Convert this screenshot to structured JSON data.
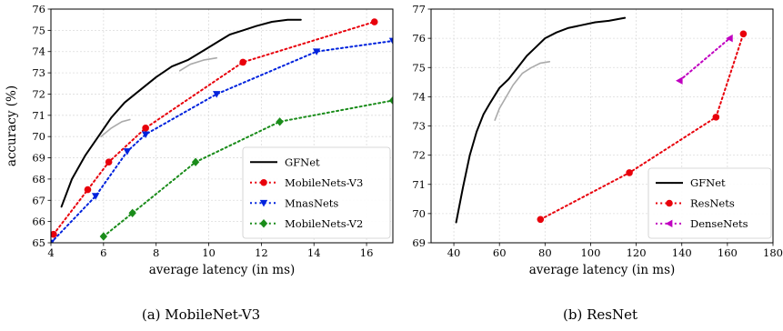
{
  "chart_data": [
    {
      "type": "line",
      "caption": "(a) MobileNet-V3",
      "xlabel": "average latency (in ms)",
      "ylabel": "accuracy (%)",
      "xlim": [
        4,
        17
      ],
      "ylim": [
        65,
        76
      ],
      "xticks": [
        4,
        6,
        8,
        10,
        12,
        14,
        16
      ],
      "yticks": [
        65,
        66,
        67,
        68,
        69,
        70,
        71,
        72,
        73,
        74,
        75,
        76
      ],
      "grid": true,
      "legend_position": "lower-right",
      "series": [
        {
          "name": "GFNet",
          "color": "#000000",
          "style": "solid",
          "marker": "none",
          "x": [
            4.4,
            4.8,
            5.3,
            5.8,
            6.3,
            6.8,
            7.4,
            8.0,
            8.6,
            9.2,
            9.6,
            10.0,
            10.4,
            10.8,
            11.3,
            11.8,
            12.4,
            13.0,
            13.5
          ],
          "y": [
            66.7,
            68.0,
            69.1,
            70.0,
            70.9,
            71.6,
            72.2,
            72.8,
            73.3,
            73.6,
            73.9,
            74.2,
            74.5,
            74.8,
            75.0,
            75.2,
            75.4,
            75.5,
            75.5
          ]
        },
        {
          "name": "",
          "color": "#aaaaaa",
          "style": "solid",
          "marker": "none",
          "x": [
            5.9,
            6.3,
            6.7,
            7.0
          ],
          "y": [
            70.0,
            70.4,
            70.7,
            70.8
          ]
        },
        {
          "name": "",
          "color": "#aaaaaa",
          "style": "solid",
          "marker": "none",
          "x": [
            8.9,
            9.3,
            9.8,
            10.3
          ],
          "y": [
            73.1,
            73.4,
            73.6,
            73.7
          ]
        },
        {
          "name": "MobileNets-V3",
          "color": "#e8000b",
          "style": "dotted",
          "marker": "circle",
          "x": [
            4.1,
            5.4,
            6.2,
            7.6,
            11.3,
            16.3
          ],
          "y": [
            65.4,
            67.5,
            68.8,
            70.4,
            73.5,
            75.4
          ]
        },
        {
          "name": "MnasNets",
          "color": "#0022dd",
          "style": "dotted",
          "marker": "triangle-down",
          "x": [
            4.0,
            5.7,
            6.9,
            7.6,
            10.3,
            14.1,
            17.0
          ],
          "y": [
            65.0,
            67.2,
            69.3,
            70.1,
            72.0,
            74.0,
            74.5
          ]
        },
        {
          "name": "MobileNets-V2",
          "color": "#1a8c1a",
          "style": "dotted",
          "marker": "diamond",
          "x": [
            6.0,
            7.1,
            9.5,
            12.7,
            17.0
          ],
          "y": [
            65.3,
            66.4,
            68.8,
            70.7,
            71.7
          ]
        }
      ]
    },
    {
      "type": "line",
      "caption": "(b) ResNet",
      "xlabel": "average latency (in ms)",
      "ylabel": "",
      "xlim": [
        30,
        180
      ],
      "ylim": [
        69,
        77
      ],
      "xticks": [
        40,
        60,
        80,
        100,
        120,
        140,
        160,
        180
      ],
      "yticks": [
        69,
        70,
        71,
        72,
        73,
        74,
        75,
        76,
        77
      ],
      "grid": true,
      "legend_position": "lower-right",
      "series": [
        {
          "name": "GFNet",
          "color": "#000000",
          "style": "solid",
          "marker": "none",
          "x": [
            41,
            44,
            47,
            50,
            53,
            56,
            60,
            64,
            68,
            72,
            76,
            80,
            85,
            90,
            96,
            102,
            108,
            115
          ],
          "y": [
            69.7,
            70.9,
            72.0,
            72.8,
            73.4,
            73.8,
            74.3,
            74.6,
            75.0,
            75.4,
            75.7,
            76.0,
            76.2,
            76.35,
            76.45,
            76.55,
            76.6,
            76.7
          ]
        },
        {
          "name": "",
          "color": "#aaaaaa",
          "style": "solid",
          "marker": "none",
          "x": [
            58,
            60,
            63,
            66,
            70,
            74,
            78,
            82
          ],
          "y": [
            73.2,
            73.6,
            74.0,
            74.4,
            74.8,
            75.0,
            75.15,
            75.2
          ]
        },
        {
          "name": "ResNets",
          "color": "#e8000b",
          "style": "dotted",
          "marker": "circle",
          "x": [
            78,
            117,
            155,
            167
          ],
          "y": [
            69.8,
            71.4,
            73.3,
            76.15
          ]
        },
        {
          "name": "DenseNets",
          "color": "#c000c0",
          "style": "dotted",
          "marker": "triangle-left",
          "x": [
            139,
            161
          ],
          "y": [
            74.55,
            76.0
          ]
        }
      ]
    }
  ]
}
